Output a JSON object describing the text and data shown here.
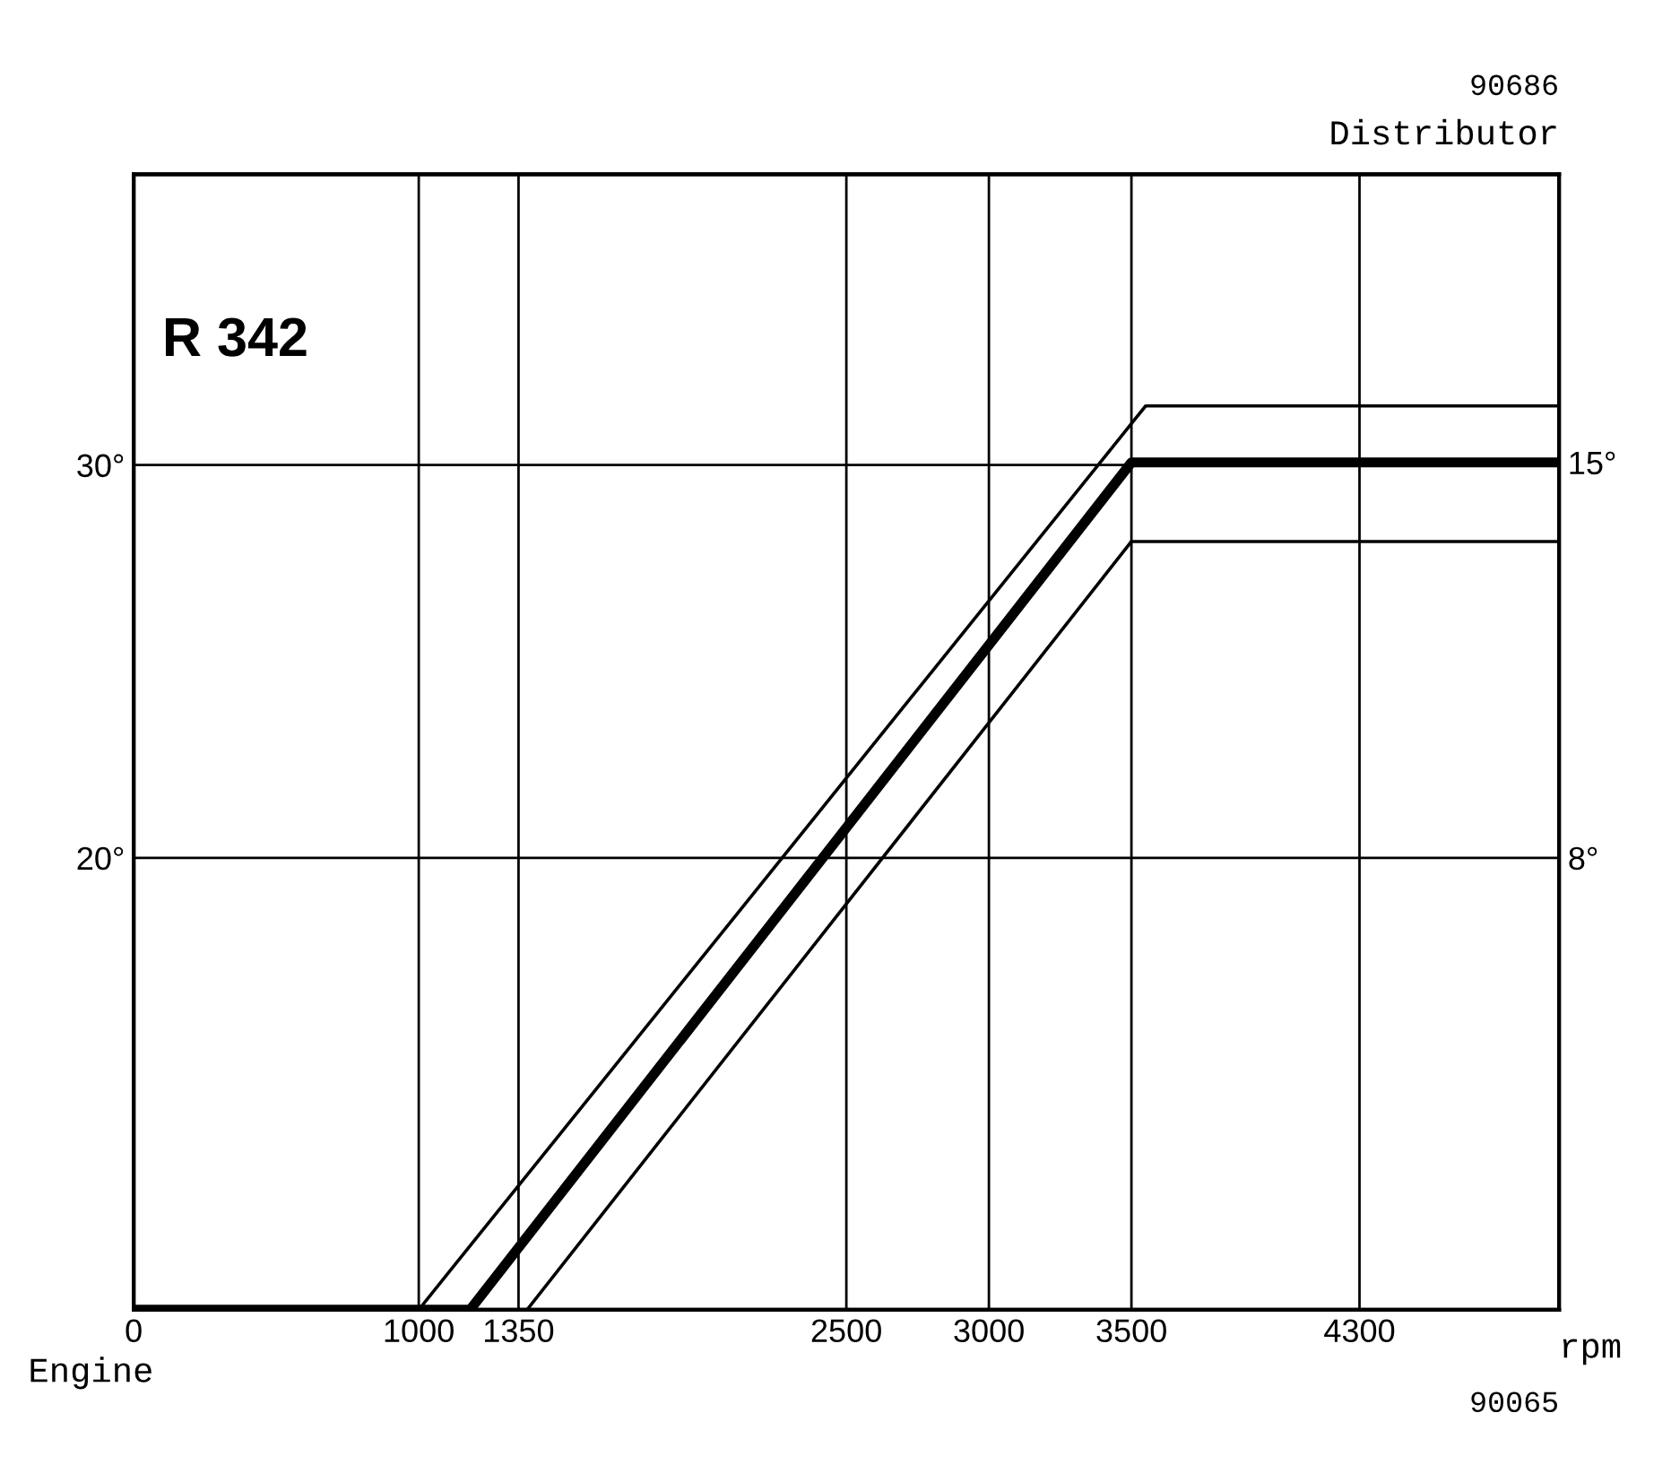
{
  "chart_data": {
    "type": "line",
    "xlabel": "rpm",
    "ylabel": "Engine",
    "y2label": "Distributor",
    "annotations": [
      "R 342",
      "90686",
      "90065"
    ],
    "xlim": [
      0,
      5000
    ],
    "xticks": [
      0,
      1000,
      1350,
      2500,
      3000,
      3500,
      4300
    ],
    "ylim": [
      8.5,
      37.4
    ],
    "yticks": [
      {
        "value": 20,
        "label": "20°"
      },
      {
        "value": 30,
        "label": "30°"
      }
    ],
    "y2lim": [
      0,
      20.1
    ],
    "y2ticks": [
      {
        "value": 8,
        "label": "8°"
      },
      {
        "value": 15,
        "label": "15°"
      }
    ],
    "grid": true,
    "marker": "none",
    "line_style": "solid",
    "series": [
      {
        "color": "#000000",
        "axis": "y2",
        "x": [
          0,
          1180,
          3500,
          5000
        ],
        "values": [
          0,
          0,
          15,
          15
        ]
      },
      {
        "color": "#000000",
        "axis": "y2",
        "x": [
          1000,
          3550,
          5000
        ],
        "values": [
          0,
          16,
          16
        ]
      },
      {
        "color": "#000000",
        "axis": "y2",
        "x": [
          1380,
          3500,
          5000
        ],
        "values": [
          0,
          13.6,
          13.6
        ]
      }
    ]
  }
}
